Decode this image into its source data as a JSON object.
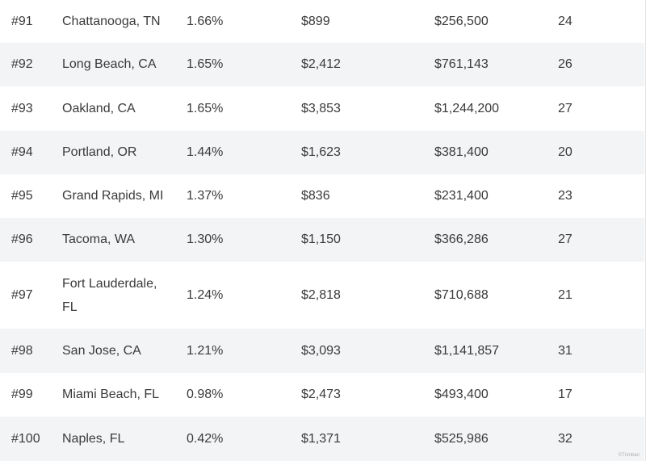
{
  "rows": [
    {
      "rank": "#91",
      "city": "Chattanooga, TN",
      "rate": "1.66%",
      "rent": "$899",
      "home_value": "$256,500",
      "score": "24"
    },
    {
      "rank": "#92",
      "city": "Long Beach, CA",
      "rate": "1.65%",
      "rent": "$2,412",
      "home_value": "$761,143",
      "score": "26"
    },
    {
      "rank": "#93",
      "city": "Oakland, CA",
      "rate": "1.65%",
      "rent": "$3,853",
      "home_value": "$1,244,200",
      "score": "27"
    },
    {
      "rank": "#94",
      "city": "Portland, OR",
      "rate": "1.44%",
      "rent": "$1,623",
      "home_value": "$381,400",
      "score": "20"
    },
    {
      "rank": "#95",
      "city": "Grand Rapids, MI",
      "rate": "1.37%",
      "rent": "$836",
      "home_value": "$231,400",
      "score": "23"
    },
    {
      "rank": "#96",
      "city": "Tacoma, WA",
      "rate": "1.30%",
      "rent": "$1,150",
      "home_value": "$366,286",
      "score": "27"
    },
    {
      "rank": "#97",
      "city": "Fort Lauderdale, FL",
      "rate": "1.24%",
      "rent": "$2,818",
      "home_value": "$710,688",
      "score": "21"
    },
    {
      "rank": "#98",
      "city": "San Jose, CA",
      "rate": "1.21%",
      "rent": "$3,093",
      "home_value": "$1,141,857",
      "score": "31"
    },
    {
      "rank": "#99",
      "city": "Miami Beach, FL",
      "rate": "0.98%",
      "rent": "$2,473",
      "home_value": "$493,400",
      "score": "17"
    },
    {
      "rank": "#100",
      "city": "Naples, FL",
      "rate": "0.42%",
      "rent": "$1,371",
      "home_value": "$525,986",
      "score": "32"
    }
  ],
  "watermark": "©Trimban",
  "colors": {
    "stripe": "#f3f4f6",
    "text": "#3a3a3a"
  }
}
